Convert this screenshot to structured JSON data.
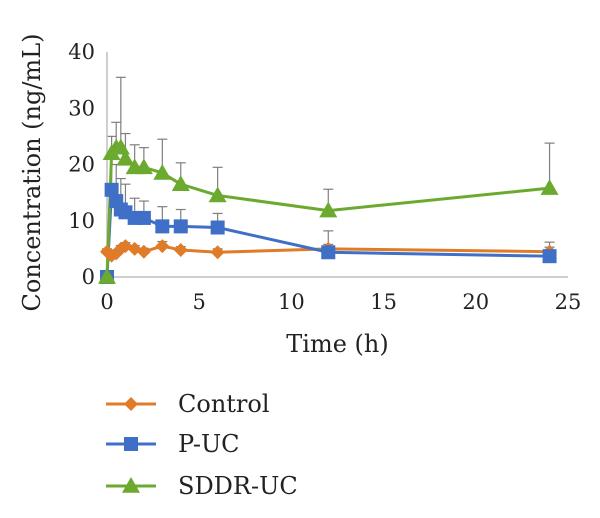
{
  "chart_data": {
    "type": "line",
    "xlabel": "Time (h)",
    "ylabel": "Concentration (ng/mL)",
    "xlim": [
      0,
      25
    ],
    "ylim": [
      0,
      40
    ],
    "x_ticks": [
      0,
      5,
      10,
      15,
      20,
      25
    ],
    "y_ticks": [
      0,
      10,
      20,
      30,
      40
    ],
    "grid": false,
    "legend_position": "bottom",
    "series": [
      {
        "name": "Control",
        "color": "#E07B28",
        "marker": "diamond",
        "x": [
          0,
          0.25,
          0.5,
          0.75,
          1,
          1.5,
          2,
          3,
          4,
          6,
          12,
          24
        ],
        "y": [
          4.5,
          3.8,
          4.2,
          5.0,
          5.5,
          5.0,
          4.5,
          5.5,
          4.8,
          4.4,
          5.0,
          4.5
        ],
        "error": [
          0.5,
          0.5,
          0.6,
          0.6,
          0.6,
          0.6,
          0.6,
          0.8,
          0.6,
          0.6,
          0.8,
          0.8
        ]
      },
      {
        "name": "P-UC",
        "color": "#3F6FC7",
        "marker": "square",
        "x": [
          0,
          0.25,
          0.5,
          0.75,
          1,
          1.5,
          2,
          3,
          4,
          6,
          12,
          24
        ],
        "y": [
          0,
          15.5,
          13.5,
          12.0,
          11.5,
          10.5,
          10.5,
          9.0,
          9.0,
          8.8,
          4.4,
          3.7
        ],
        "error": [
          0,
          6.0,
          6.5,
          5.5,
          5.0,
          3.5,
          3.0,
          3.5,
          3.0,
          2.5,
          3.8,
          2.5
        ]
      },
      {
        "name": "SDDR-UC",
        "color": "#6BAA2F",
        "marker": "triangle",
        "x": [
          0,
          0.25,
          0.5,
          0.75,
          1,
          1.5,
          2,
          3,
          4,
          6,
          12,
          24
        ],
        "y": [
          0,
          22.0,
          23.0,
          23.0,
          21.0,
          19.5,
          19.5,
          18.5,
          16.5,
          14.5,
          11.8,
          15.8
        ],
        "error": [
          0,
          3.0,
          4.5,
          12.5,
          4.5,
          4.0,
          3.5,
          6.0,
          3.8,
          5.0,
          3.8,
          8.0
        ]
      }
    ]
  }
}
